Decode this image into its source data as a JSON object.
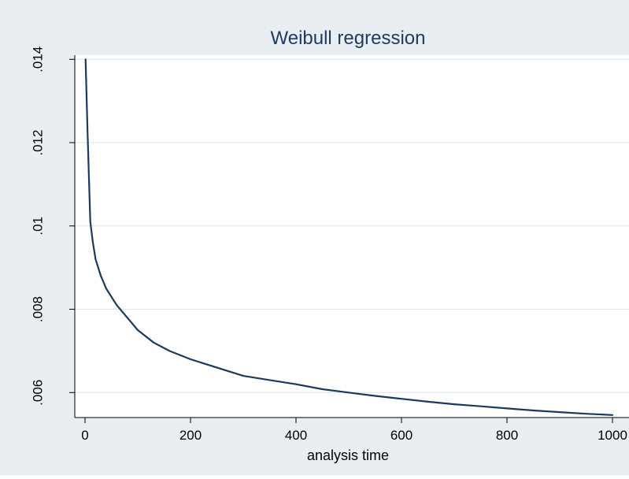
{
  "chart_data": {
    "type": "line",
    "title": "Weibull regression",
    "xlabel": "analysis time",
    "ylabel": "",
    "xlim": [
      0,
      1000
    ],
    "ylim": [
      0.0054,
      0.0141
    ],
    "x_ticks": [
      0,
      200,
      400,
      600,
      800,
      1000
    ],
    "x_tick_labels": [
      "0",
      "200",
      "400",
      "600",
      "800",
      "1000"
    ],
    "y_ticks": [
      0.006,
      0.008,
      0.01,
      0.012,
      0.014
    ],
    "y_tick_labels": [
      ".006",
      ".008",
      ".01",
      ".012",
      ".014"
    ],
    "grid": "horizontal",
    "legend": "none",
    "colors": {
      "background": "#e9eef3",
      "plot_area": "#ffffff",
      "line": "#1a3a5e",
      "title": "#1f3b63",
      "grid": "#e3e9ee"
    },
    "series": [
      {
        "x": [
          1,
          5,
          10,
          15,
          20,
          30,
          40,
          50,
          60,
          80,
          100,
          130,
          160,
          200,
          250,
          300,
          350,
          400,
          450,
          500,
          550,
          600,
          650,
          700,
          750,
          800,
          850,
          900,
          950,
          1000
        ],
        "values": [
          0.014,
          0.0122,
          0.0101,
          0.0096,
          0.0092,
          0.0088,
          0.0085,
          0.0083,
          0.0081,
          0.0078,
          0.0075,
          0.0072,
          0.007,
          0.0068,
          0.0066,
          0.0064,
          0.0063,
          0.0062,
          0.00608,
          0.006,
          0.00592,
          0.00585,
          0.00578,
          0.00572,
          0.00567,
          0.00562,
          0.00557,
          0.00553,
          0.00549,
          0.00546
        ]
      }
    ]
  }
}
